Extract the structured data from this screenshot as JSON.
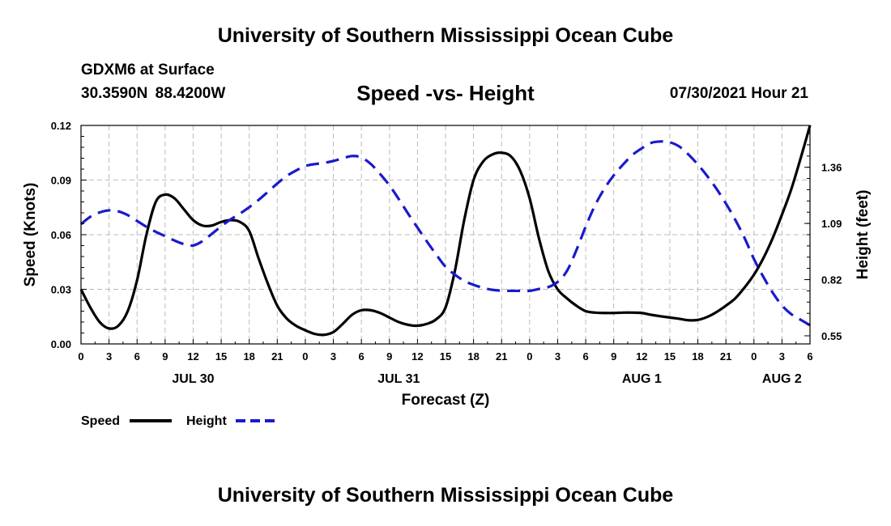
{
  "header": {
    "title": "University of Southern Mississippi Ocean Cube",
    "station": "GDXM6 at Surface",
    "coords": "30.3590N  88.4200W",
    "chart_title": "Speed -vs- Height",
    "timestamp": "07/30/2021 Hour 21"
  },
  "footer": {
    "title": "University of Southern Mississippi Ocean Cube"
  },
  "colors": {
    "speed": "#000000",
    "height": "#1a1acc",
    "grid": "#bbbbbb"
  },
  "chart_data": {
    "type": "line",
    "title": "Speed -vs- Height",
    "xlabel": "Forecast (Z)",
    "ylabel_left": "Speed (Knots)",
    "ylabel_right": "Height (feet)",
    "x_unit": "hours since Jul 30 00Z",
    "xlim": [
      0,
      78
    ],
    "ylim_left": [
      0,
      0.12
    ],
    "ylim_right": [
      0.511,
      1.561
    ],
    "x_ticks": [
      {
        "x": 0,
        "label": "0"
      },
      {
        "x": 3,
        "label": "3"
      },
      {
        "x": 6,
        "label": "6"
      },
      {
        "x": 9,
        "label": "9"
      },
      {
        "x": 12,
        "label": "12"
      },
      {
        "x": 15,
        "label": "15"
      },
      {
        "x": 18,
        "label": "18"
      },
      {
        "x": 21,
        "label": "21"
      },
      {
        "x": 24,
        "label": "0"
      },
      {
        "x": 27,
        "label": "3"
      },
      {
        "x": 30,
        "label": "6"
      },
      {
        "x": 33,
        "label": "9"
      },
      {
        "x": 36,
        "label": "12"
      },
      {
        "x": 39,
        "label": "15"
      },
      {
        "x": 42,
        "label": "18"
      },
      {
        "x": 45,
        "label": "21"
      },
      {
        "x": 48,
        "label": "0"
      },
      {
        "x": 51,
        "label": "3"
      },
      {
        "x": 54,
        "label": "6"
      },
      {
        "x": 57,
        "label": "9"
      },
      {
        "x": 60,
        "label": "12"
      },
      {
        "x": 63,
        "label": "15"
      },
      {
        "x": 66,
        "label": "18"
      },
      {
        "x": 69,
        "label": "21"
      },
      {
        "x": 72,
        "label": "0"
      },
      {
        "x": 75,
        "label": "3"
      },
      {
        "x": 78,
        "label": "6"
      }
    ],
    "date_labels": [
      {
        "x": 12,
        "label": "JUL 30"
      },
      {
        "x": 34,
        "label": "JUL 31"
      },
      {
        "x": 60,
        "label": "AUG 1"
      },
      {
        "x": 75,
        "label": "AUG 2"
      }
    ],
    "y_ticks_left": [
      {
        "value": 0,
        "label": "0.00"
      },
      {
        "value": 0.03,
        "label": "0.03"
      },
      {
        "value": 0.06,
        "label": "0.06"
      },
      {
        "value": 0.09,
        "label": "0.09"
      },
      {
        "value": 0.12,
        "label": "0.12"
      }
    ],
    "y_ticks_right": [
      {
        "value": 0.55,
        "label": "0.55"
      },
      {
        "value": 0.82,
        "label": "0.82"
      },
      {
        "value": 1.09,
        "label": "1.09"
      },
      {
        "value": 1.36,
        "label": "1.36"
      }
    ],
    "series": [
      {
        "name": "Speed",
        "axis": "left",
        "style": "solid",
        "points": [
          [
            0,
            0.03
          ],
          [
            1,
            0.02
          ],
          [
            2,
            0.012
          ],
          [
            3,
            0.0085
          ],
          [
            4,
            0.01
          ],
          [
            5,
            0.018
          ],
          [
            6,
            0.035
          ],
          [
            7,
            0.06
          ],
          [
            8,
            0.078
          ],
          [
            9,
            0.082
          ],
          [
            10,
            0.08
          ],
          [
            11,
            0.074
          ],
          [
            12,
            0.068
          ],
          [
            13,
            0.065
          ],
          [
            14,
            0.065
          ],
          [
            15,
            0.067
          ],
          [
            16,
            0.068
          ],
          [
            17,
            0.067
          ],
          [
            18,
            0.062
          ],
          [
            19,
            0.047
          ],
          [
            20,
            0.033
          ],
          [
            21,
            0.021
          ],
          [
            22,
            0.014
          ],
          [
            23,
            0.01
          ],
          [
            24,
            0.0075
          ],
          [
            25,
            0.0055
          ],
          [
            26,
            0.005
          ],
          [
            27,
            0.0065
          ],
          [
            28,
            0.011
          ],
          [
            29,
            0.016
          ],
          [
            30,
            0.0185
          ],
          [
            31,
            0.0185
          ],
          [
            32,
            0.017
          ],
          [
            33,
            0.0145
          ],
          [
            34,
            0.012
          ],
          [
            35,
            0.0105
          ],
          [
            36,
            0.01
          ],
          [
            37,
            0.011
          ],
          [
            38,
            0.0135
          ],
          [
            39,
            0.02
          ],
          [
            40,
            0.04
          ],
          [
            41,
            0.068
          ],
          [
            42,
            0.09
          ],
          [
            43,
            0.1
          ],
          [
            44,
            0.104
          ],
          [
            45,
            0.105
          ],
          [
            46,
            0.103
          ],
          [
            47,
            0.095
          ],
          [
            48,
            0.08
          ],
          [
            49,
            0.058
          ],
          [
            50,
            0.04
          ],
          [
            51,
            0.03
          ],
          [
            52,
            0.025
          ],
          [
            53,
            0.021
          ],
          [
            54,
            0.018
          ],
          [
            55,
            0.0172
          ],
          [
            56,
            0.017
          ],
          [
            57,
            0.017
          ],
          [
            58,
            0.0172
          ],
          [
            59,
            0.0172
          ],
          [
            60,
            0.017
          ],
          [
            61,
            0.016
          ],
          [
            62,
            0.0152
          ],
          [
            63,
            0.0145
          ],
          [
            64,
            0.0138
          ],
          [
            65,
            0.013
          ],
          [
            66,
            0.0132
          ],
          [
            67,
            0.0148
          ],
          [
            68,
            0.0175
          ],
          [
            69,
            0.021
          ],
          [
            70,
            0.025
          ],
          [
            71,
            0.031
          ],
          [
            72,
            0.038
          ],
          [
            73,
            0.047
          ],
          [
            74,
            0.058
          ],
          [
            75,
            0.071
          ],
          [
            76,
            0.085
          ],
          [
            77,
            0.102
          ],
          [
            78,
            0.12
          ]
        ]
      },
      {
        "name": "Height",
        "axis": "right",
        "style": "dashed",
        "points": [
          [
            0,
            1.087
          ],
          [
            1,
            1.122
          ],
          [
            2,
            1.143
          ],
          [
            3,
            1.153
          ],
          [
            4,
            1.148
          ],
          [
            5,
            1.13
          ],
          [
            6,
            1.102
          ],
          [
            7,
            1.074
          ],
          [
            8,
            1.05
          ],
          [
            9,
            1.029
          ],
          [
            10,
            1.008
          ],
          [
            11,
            0.991
          ],
          [
            12,
            0.984
          ],
          [
            13,
            1.005
          ],
          [
            14,
            1.04
          ],
          [
            15,
            1.076
          ],
          [
            16,
            1.109
          ],
          [
            17,
            1.137
          ],
          [
            18,
            1.168
          ],
          [
            19,
            1.203
          ],
          [
            20,
            1.242
          ],
          [
            21,
            1.282
          ],
          [
            22,
            1.318
          ],
          [
            23,
            1.344
          ],
          [
            24,
            1.366
          ],
          [
            25,
            1.375
          ],
          [
            26,
            1.381
          ],
          [
            27,
            1.39
          ],
          [
            28,
            1.403
          ],
          [
            29,
            1.414
          ],
          [
            30,
            1.407
          ],
          [
            31,
            1.376
          ],
          [
            32,
            1.328
          ],
          [
            33,
            1.273
          ],
          [
            34,
            1.207
          ],
          [
            35,
            1.137
          ],
          [
            36,
            1.07
          ],
          [
            37,
            1.004
          ],
          [
            38,
            0.941
          ],
          [
            39,
            0.882
          ],
          [
            40,
            0.844
          ],
          [
            41,
            0.814
          ],
          [
            42,
            0.795
          ],
          [
            43,
            0.781
          ],
          [
            44,
            0.771
          ],
          [
            45,
            0.767
          ],
          [
            46,
            0.766
          ],
          [
            47,
            0.766
          ],
          [
            48,
            0.766
          ],
          [
            49,
            0.775
          ],
          [
            50,
            0.784
          ],
          [
            51,
            0.809
          ],
          [
            52,
            0.862
          ],
          [
            53,
            0.961
          ],
          [
            54,
            1.075
          ],
          [
            55,
            1.177
          ],
          [
            56,
            1.257
          ],
          [
            57,
            1.321
          ],
          [
            58,
            1.373
          ],
          [
            59,
            1.419
          ],
          [
            60,
            1.451
          ],
          [
            61,
            1.477
          ],
          [
            62,
            1.484
          ],
          [
            63,
            1.48
          ],
          [
            64,
            1.46
          ],
          [
            65,
            1.421
          ],
          [
            66,
            1.373
          ],
          [
            67,
            1.318
          ],
          [
            68,
            1.256
          ],
          [
            69,
            1.186
          ],
          [
            70,
            1.108
          ],
          [
            71,
            1.02
          ],
          [
            72,
            0.919
          ],
          [
            73,
            0.834
          ],
          [
            74,
            0.758
          ],
          [
            75,
            0.696
          ],
          [
            76,
            0.654
          ],
          [
            77,
            0.627
          ],
          [
            78,
            0.601
          ]
        ]
      }
    ],
    "legend": [
      {
        "label": "Speed",
        "series": "Speed"
      },
      {
        "label": "Height",
        "series": "Height"
      }
    ],
    "grid": true,
    "legend_position": "bottom-left"
  }
}
